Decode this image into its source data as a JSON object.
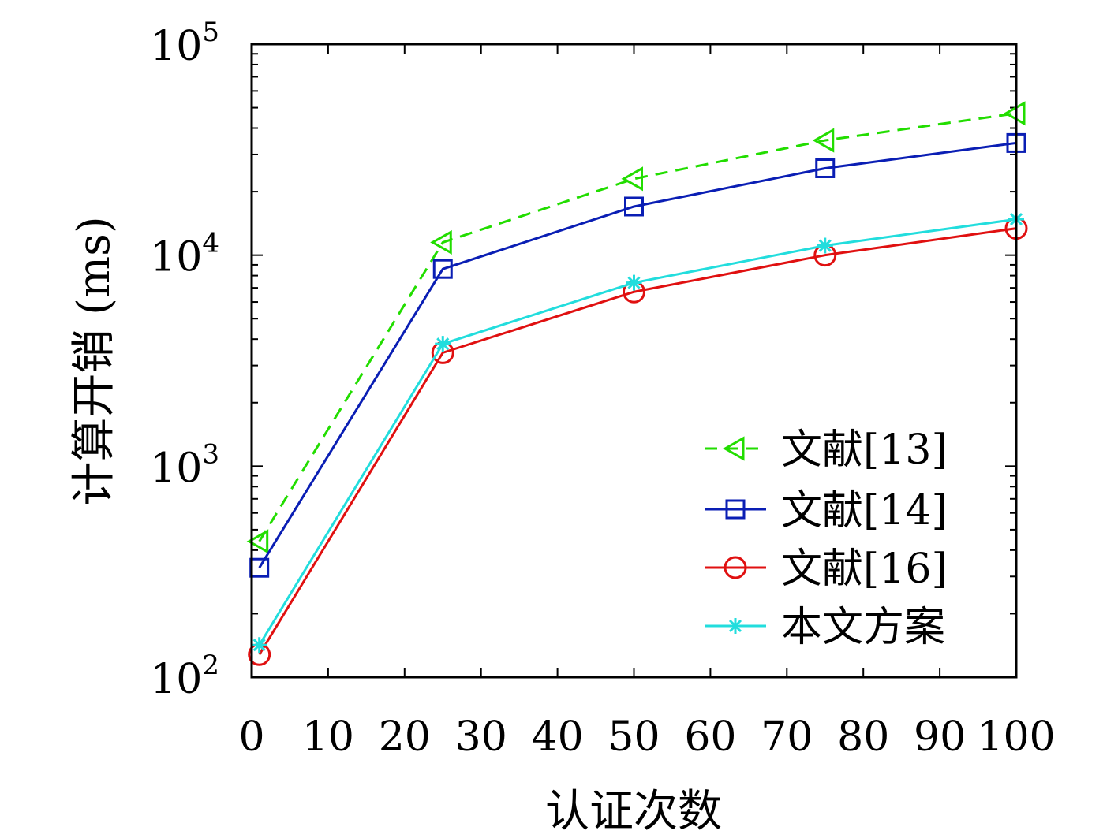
{
  "chart_data": {
    "type": "line",
    "xlabel": "认证次数",
    "ylabel": "计算开销 (ms)",
    "xlim": [
      0,
      100
    ],
    "ylim": [
      100,
      100000
    ],
    "yscale": "log",
    "x_ticks": [
      "0",
      "10",
      "20",
      "30",
      "40",
      "50",
      "60",
      "70",
      "80",
      "90",
      "100"
    ],
    "y_ticks": [
      {
        "value": 100,
        "base": "10",
        "exp": "2"
      },
      {
        "value": 1000,
        "base": "10",
        "exp": "3"
      },
      {
        "value": 10000,
        "base": "10",
        "exp": "4"
      },
      {
        "value": 100000,
        "base": "10",
        "exp": "5"
      }
    ],
    "legend_position": "bottom-right",
    "grid": false,
    "series": [
      {
        "name": "文献[13]",
        "color": "#22dd00",
        "dash": true,
        "marker": "triangle-left",
        "x": [
          1,
          25,
          50,
          75,
          100
        ],
        "values": [
          440,
          11500,
          23000,
          35000,
          47000
        ]
      },
      {
        "name": "文献[14]",
        "color": "#0a1eb4",
        "dash": false,
        "marker": "square",
        "x": [
          1,
          25,
          50,
          75,
          100
        ],
        "values": [
          330,
          8600,
          17000,
          25800,
          34000
        ]
      },
      {
        "name": "文献[16]",
        "color": "#e01010",
        "dash": false,
        "marker": "circle",
        "x": [
          1,
          25,
          50,
          75,
          100
        ],
        "values": [
          128,
          3450,
          6700,
          10000,
          13400
        ]
      },
      {
        "name": "本文方案",
        "color": "#22dddd",
        "dash": false,
        "marker": "asterisk",
        "x": [
          1,
          25,
          50,
          75,
          100
        ],
        "values": [
          142,
          3800,
          7400,
          11100,
          14800
        ]
      }
    ]
  }
}
